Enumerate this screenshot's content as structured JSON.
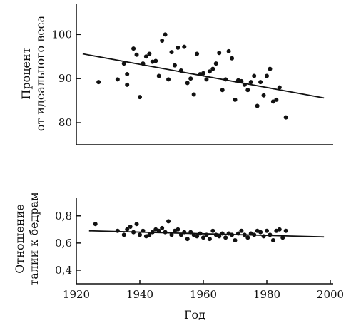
{
  "chart_data": [
    {
      "type": "scatter",
      "ylabel_line1": "Процент",
      "ylabel_line2": "от идеального веса",
      "ylim": [
        75,
        107
      ],
      "xlim": [
        1920,
        2000
      ],
      "y_ticks": [
        {
          "value": 80,
          "label": "80"
        },
        {
          "value": 90,
          "label": "90"
        },
        {
          "value": 100,
          "label": "100"
        }
      ],
      "points": [
        [
          1927,
          89.2
        ],
        [
          1933,
          89.8
        ],
        [
          1935,
          93.4
        ],
        [
          1936,
          91.0
        ],
        [
          1936,
          88.6
        ],
        [
          1938,
          96.8
        ],
        [
          1939,
          95.4
        ],
        [
          1940,
          85.8
        ],
        [
          1941,
          93.4
        ],
        [
          1942,
          95.0
        ],
        [
          1943,
          95.6
        ],
        [
          1944,
          93.8
        ],
        [
          1945,
          94.0
        ],
        [
          1946,
          90.6
        ],
        [
          1947,
          98.6
        ],
        [
          1948,
          100.0
        ],
        [
          1949,
          89.8
        ],
        [
          1950,
          96.0
        ],
        [
          1951,
          93.0
        ],
        [
          1952,
          97.0
        ],
        [
          1953,
          91.8
        ],
        [
          1954,
          97.2
        ],
        [
          1955,
          89.0
        ],
        [
          1956,
          90.0
        ],
        [
          1957,
          86.4
        ],
        [
          1958,
          95.6
        ],
        [
          1959,
          91.0
        ],
        [
          1960,
          91.2
        ],
        [
          1961,
          89.8
        ],
        [
          1962,
          91.6
        ],
        [
          1963,
          92.2
        ],
        [
          1964,
          93.4
        ],
        [
          1965,
          95.8
        ],
        [
          1966,
          87.4
        ],
        [
          1967,
          89.8
        ],
        [
          1968,
          96.2
        ],
        [
          1969,
          94.6
        ],
        [
          1970,
          85.2
        ],
        [
          1971,
          89.6
        ],
        [
          1972,
          89.4
        ],
        [
          1973,
          88.6
        ],
        [
          1974,
          87.4
        ],
        [
          1975,
          89.2
        ],
        [
          1976,
          90.6
        ],
        [
          1977,
          83.8
        ],
        [
          1978,
          89.2
        ],
        [
          1979,
          86.2
        ],
        [
          1980,
          90.6
        ],
        [
          1981,
          92.2
        ],
        [
          1982,
          84.8
        ],
        [
          1983,
          85.2
        ],
        [
          1984,
          88.0
        ],
        [
          1986,
          81.2
        ]
      ],
      "trend": {
        "x": [
          1922,
          1998
        ],
        "y": [
          95.6,
          85.6
        ]
      }
    },
    {
      "type": "scatter",
      "ylabel_line1": "Отношение",
      "ylabel_line2": "талии к бедрам",
      "ylim": [
        0.3,
        0.93
      ],
      "xlim": [
        1920,
        2000
      ],
      "xlabel": "Год",
      "x_ticks": [
        {
          "value": 1920,
          "label": "1920"
        },
        {
          "value": 1940,
          "label": "1940"
        },
        {
          "value": 1960,
          "label": "1960"
        },
        {
          "value": 1980,
          "label": "1980"
        },
        {
          "value": 2000,
          "label": "2000"
        }
      ],
      "y_ticks": [
        {
          "value": 0.4,
          "label": "0,4"
        },
        {
          "value": 0.6,
          "label": "0,6"
        },
        {
          "value": 0.8,
          "label": "0,8"
        }
      ],
      "points": [
        [
          1926,
          0.74
        ],
        [
          1933,
          0.69
        ],
        [
          1935,
          0.66
        ],
        [
          1936,
          0.7
        ],
        [
          1937,
          0.72
        ],
        [
          1938,
          0.68
        ],
        [
          1939,
          0.74
        ],
        [
          1940,
          0.66
        ],
        [
          1941,
          0.69
        ],
        [
          1942,
          0.65
        ],
        [
          1943,
          0.66
        ],
        [
          1944,
          0.68
        ],
        [
          1945,
          0.7
        ],
        [
          1946,
          0.69
        ],
        [
          1947,
          0.71
        ],
        [
          1948,
          0.68
        ],
        [
          1949,
          0.76
        ],
        [
          1950,
          0.66
        ],
        [
          1951,
          0.69
        ],
        [
          1952,
          0.7
        ],
        [
          1953,
          0.66
        ],
        [
          1954,
          0.68
        ],
        [
          1955,
          0.63
        ],
        [
          1956,
          0.68
        ],
        [
          1957,
          0.66
        ],
        [
          1958,
          0.65
        ],
        [
          1959,
          0.67
        ],
        [
          1960,
          0.64
        ],
        [
          1961,
          0.66
        ],
        [
          1962,
          0.63
        ],
        [
          1963,
          0.69
        ],
        [
          1964,
          0.66
        ],
        [
          1965,
          0.65
        ],
        [
          1966,
          0.67
        ],
        [
          1967,
          0.64
        ],
        [
          1968,
          0.67
        ],
        [
          1969,
          0.66
        ],
        [
          1970,
          0.62
        ],
        [
          1971,
          0.67
        ],
        [
          1972,
          0.69
        ],
        [
          1973,
          0.66
        ],
        [
          1974,
          0.64
        ],
        [
          1975,
          0.67
        ],
        [
          1976,
          0.66
        ],
        [
          1977,
          0.69
        ],
        [
          1978,
          0.68
        ],
        [
          1979,
          0.65
        ],
        [
          1980,
          0.69
        ],
        [
          1981,
          0.66
        ],
        [
          1982,
          0.62
        ],
        [
          1983,
          0.69
        ],
        [
          1984,
          0.7
        ],
        [
          1985,
          0.64
        ],
        [
          1986,
          0.69
        ]
      ],
      "trend": {
        "x": [
          1924,
          1998
        ],
        "y": [
          0.69,
          0.645
        ]
      }
    }
  ]
}
